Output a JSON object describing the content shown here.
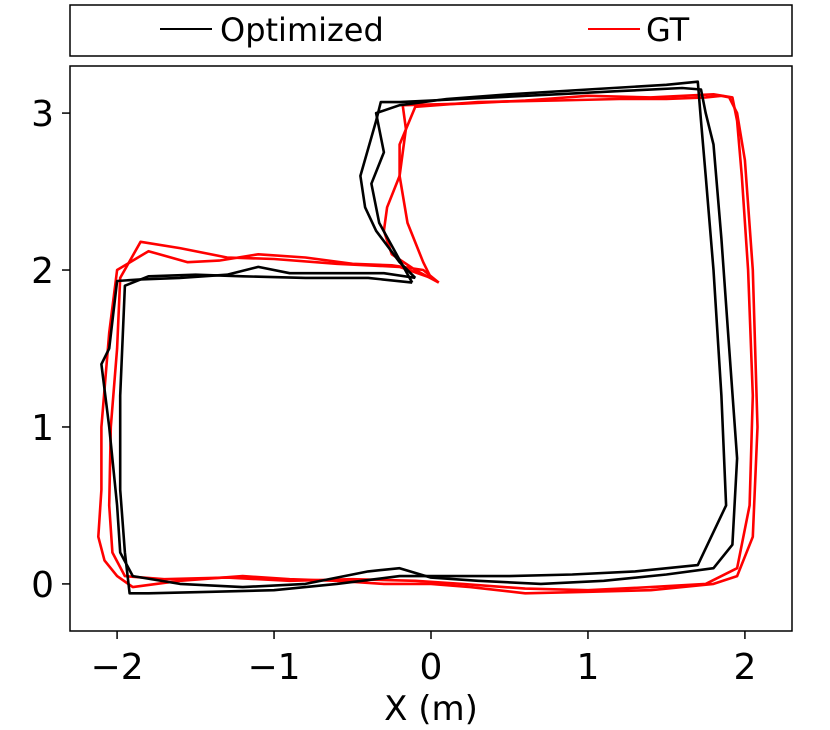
{
  "chart_data": {
    "type": "line",
    "title": "",
    "xlabel": "X (m)",
    "ylabel": "",
    "xlim": [
      -2.3,
      2.3
    ],
    "ylim": [
      -0.3,
      3.3
    ],
    "xticks": [
      -2,
      -1,
      0,
      1,
      2
    ],
    "xtick_labels": [
      "−2",
      "−1",
      "0",
      "1",
      "2"
    ],
    "yticks": [
      0,
      1,
      2,
      3
    ],
    "ytick_labels": [
      "0",
      "1",
      "2",
      "3"
    ],
    "grid": false,
    "legend_position": "top",
    "series": [
      {
        "name": "GT",
        "color": "#ff0000",
        "paths": [
          {
            "x": [
              0.05,
              -0.05,
              -0.25,
              -0.5,
              -0.8,
              -1.1,
              -1.35,
              -1.55,
              -1.8,
              -2.0,
              -2.05,
              -2.1,
              -2.1,
              -2.12,
              -2.08,
              -2.0,
              -1.9,
              -1.6,
              -1.2,
              -0.9,
              -0.6,
              -0.3,
              0.0,
              0.25,
              0.6,
              1.0,
              1.4,
              1.8,
              1.95,
              2.05,
              2.08,
              2.05,
              2.0,
              1.95,
              1.9,
              1.85,
              1.75,
              1.5,
              1.2,
              0.8,
              0.3,
              -0.1,
              -0.2,
              -0.2,
              -0.28,
              -0.3,
              -0.25,
              -0.1,
              0.05
            ],
            "y": [
              1.92,
              2.0,
              2.03,
              2.04,
              2.08,
              2.1,
              2.06,
              2.05,
              2.12,
              2.0,
              1.6,
              1.0,
              0.6,
              0.3,
              0.15,
              0.05,
              -0.02,
              0.02,
              0.05,
              0.03,
              0.02,
              0.0,
              0.0,
              -0.02,
              -0.06,
              -0.05,
              -0.04,
              0.0,
              0.05,
              0.3,
              1.0,
              2.0,
              2.7,
              3.0,
              3.1,
              3.11,
              3.1,
              3.09,
              3.09,
              3.08,
              3.07,
              3.04,
              2.8,
              2.6,
              2.4,
              2.25,
              2.1,
              2.0,
              1.92
            ]
          },
          {
            "x": [
              0.0,
              -0.2,
              -0.6,
              -1.0,
              -1.3,
              -1.6,
              -1.85,
              -1.98,
              -2.0,
              -2.04,
              -2.05,
              -2.03,
              -1.95,
              -1.7,
              -1.3,
              -0.9,
              -0.5,
              -0.1,
              0.2,
              0.6,
              1.0,
              1.4,
              1.75,
              1.95,
              2.03,
              2.05,
              2.02,
              1.98,
              1.95,
              1.92,
              1.8,
              1.4,
              1.0,
              0.6,
              0.2,
              -0.18,
              -0.16,
              -0.2,
              -0.15,
              -0.05,
              0.0
            ],
            "y": [
              1.95,
              2.02,
              2.04,
              2.07,
              2.08,
              2.14,
              2.18,
              1.95,
              1.5,
              1.0,
              0.5,
              0.2,
              0.05,
              0.03,
              0.04,
              0.02,
              0.03,
              0.02,
              0.0,
              -0.03,
              -0.04,
              -0.02,
              0.0,
              0.1,
              0.5,
              1.2,
              2.0,
              2.6,
              2.95,
              3.1,
              3.12,
              3.1,
              3.11,
              3.08,
              3.06,
              3.05,
              2.9,
              2.6,
              2.3,
              2.05,
              1.95
            ]
          }
        ]
      },
      {
        "name": "Optimized",
        "color": "#000000",
        "paths": [
          {
            "x": [
              -0.1,
              -0.3,
              -0.6,
              -0.9,
              -1.1,
              -1.3,
              -1.6,
              -1.85,
              -2.0,
              -2.05,
              -2.1,
              -2.05,
              -2.0,
              -1.98,
              -1.9,
              -1.6,
              -1.2,
              -0.8,
              -0.4,
              -0.2,
              0.0,
              0.3,
              0.7,
              1.1,
              1.5,
              1.8,
              1.92,
              1.95,
              1.9,
              1.85,
              1.8,
              1.75,
              1.72,
              1.6,
              1.2,
              0.8,
              0.4,
              0.0,
              -0.2,
              -0.32,
              -0.35,
              -0.45,
              -0.42,
              -0.35,
              -0.2,
              -0.1
            ],
            "y": [
              1.95,
              1.98,
              1.98,
              1.98,
              2.02,
              1.97,
              1.95,
              1.94,
              1.93,
              1.5,
              1.4,
              1.0,
              0.5,
              0.2,
              0.05,
              0.0,
              -0.02,
              0.0,
              0.08,
              0.1,
              0.04,
              0.02,
              0.0,
              0.02,
              0.06,
              0.1,
              0.25,
              0.8,
              1.5,
              2.2,
              2.8,
              3.0,
              3.15,
              3.16,
              3.14,
              3.12,
              3.1,
              3.08,
              3.07,
              3.07,
              2.95,
              2.6,
              2.4,
              2.25,
              2.05,
              1.95
            ]
          },
          {
            "x": [
              -0.12,
              -0.4,
              -0.8,
              -1.2,
              -1.5,
              -1.8,
              -1.95,
              -1.98,
              -1.98,
              -1.95,
              -1.92,
              -1.8,
              -1.4,
              -1.0,
              -0.6,
              -0.2,
              0.1,
              0.5,
              0.9,
              1.3,
              1.7,
              1.88,
              1.85,
              1.8,
              1.75,
              1.72,
              1.7,
              1.5,
              1.0,
              0.5,
              0.1,
              -0.2,
              -0.35,
              -0.3,
              -0.38,
              -0.33,
              -0.22,
              -0.12
            ],
            "y": [
              1.92,
              1.95,
              1.95,
              1.96,
              1.97,
              1.96,
              1.9,
              1.2,
              0.6,
              0.2,
              -0.06,
              -0.06,
              -0.05,
              -0.04,
              0.0,
              0.05,
              0.05,
              0.05,
              0.06,
              0.08,
              0.12,
              0.5,
              1.2,
              2.0,
              2.6,
              2.95,
              3.2,
              3.18,
              3.15,
              3.12,
              3.09,
              3.05,
              3.0,
              2.75,
              2.55,
              2.3,
              2.1,
              1.92
            ]
          }
        ]
      }
    ]
  }
}
